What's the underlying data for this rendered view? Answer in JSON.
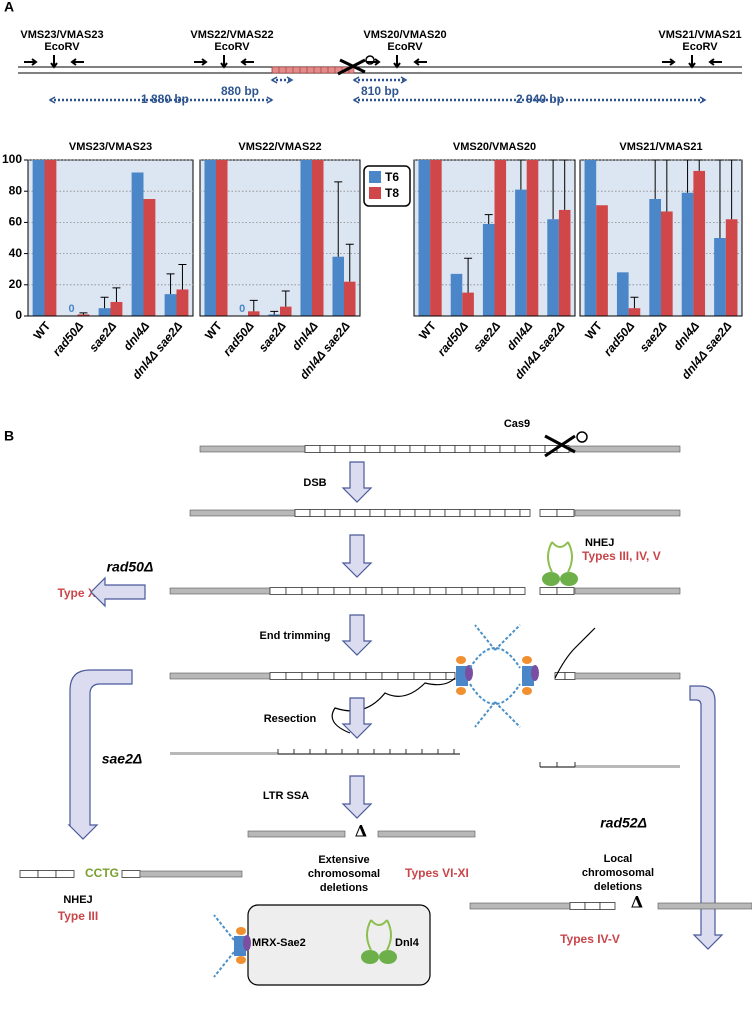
{
  "panel_a": {
    "label": "A",
    "sites": [
      {
        "name": "VMS23/VMAS23",
        "enzyme": "EcoRV"
      },
      {
        "name": "VMS22/VMAS22",
        "enzyme": "EcoRV"
      },
      {
        "name": "VMS20/VMAS20",
        "enzyme": "EcoRV"
      },
      {
        "name": "VMS21/VMAS21",
        "enzyme": "EcoRV"
      }
    ],
    "distances": [
      "1 880 bp",
      "880 bp",
      "810 bp",
      "2 940 bp"
    ]
  },
  "chart_data": [
    {
      "type": "bar",
      "title": "VMS23/VMAS23",
      "categories": [
        "WT",
        "rad50Δ",
        "sae2Δ",
        "dnl4Δ",
        "dnl4Δ sae2Δ"
      ],
      "series": [
        {
          "name": "T6",
          "color": "#4a86c8",
          "values": [
            100,
            0,
            5,
            92,
            14
          ],
          "errors": [
            null,
            null,
            7,
            null,
            13
          ],
          "value_labels": [
            null,
            "0",
            null,
            null,
            null
          ]
        },
        {
          "name": "T8",
          "color": "#d0474a",
          "values": [
            100,
            1,
            9,
            75,
            17
          ],
          "errors": [
            null,
            1,
            9,
            null,
            16
          ]
        }
      ],
      "ylim": [
        0,
        100
      ],
      "yticks": [
        0,
        20,
        40,
        60,
        80,
        100
      ],
      "grid": true
    },
    {
      "type": "bar",
      "title": "VMS22/VMAS22",
      "categories": [
        "WT",
        "rad50Δ",
        "sae2Δ",
        "dnl4Δ",
        "dnl4Δ sae2Δ"
      ],
      "series": [
        {
          "name": "T6",
          "color": "#4a86c8",
          "values": [
            100,
            0,
            1,
            100,
            38
          ],
          "errors": [
            null,
            null,
            2,
            null,
            48
          ],
          "value_labels": [
            null,
            "0",
            null,
            null,
            null
          ]
        },
        {
          "name": "T8",
          "color": "#d0474a",
          "values": [
            100,
            3,
            6,
            100,
            22
          ],
          "errors": [
            null,
            7,
            10,
            null,
            24
          ]
        }
      ],
      "ylim": [
        0,
        100
      ],
      "yticks": [
        0,
        20,
        40,
        60,
        80,
        100
      ],
      "grid": true,
      "legend": "right"
    },
    {
      "type": "bar",
      "title": "VMS20/VMAS20",
      "categories": [
        "WT",
        "rad50Δ",
        "sae2Δ",
        "dnl4Δ",
        "dnl4Δ sae2Δ"
      ],
      "series": [
        {
          "name": "T6",
          "color": "#4a86c8",
          "values": [
            100,
            27,
            59,
            81,
            62
          ],
          "errors": [
            null,
            null,
            6,
            19,
            38
          ]
        },
        {
          "name": "T8",
          "color": "#d0474a",
          "values": [
            100,
            15,
            100,
            100,
            68
          ],
          "errors": [
            null,
            22,
            null,
            null,
            32
          ]
        }
      ],
      "ylim": [
        0,
        100
      ],
      "yticks": [
        0,
        20,
        40,
        60,
        80,
        100
      ],
      "grid": true
    },
    {
      "type": "bar",
      "title": "VMS21/VMAS21",
      "categories": [
        "WT",
        "rad50Δ",
        "sae2Δ",
        "dnl4Δ",
        "dnl4Δ sae2Δ"
      ],
      "series": [
        {
          "name": "T6",
          "color": "#4a86c8",
          "values": [
            100,
            28,
            75,
            79,
            50
          ],
          "errors": [
            null,
            null,
            25,
            21,
            50
          ]
        },
        {
          "name": "T8",
          "color": "#d0474a",
          "values": [
            71,
            5,
            67,
            93,
            62
          ],
          "errors": [
            null,
            7,
            33,
            7,
            38
          ]
        }
      ],
      "ylim": [
        0,
        100
      ],
      "yticks": [
        0,
        20,
        40,
        60,
        80,
        100
      ],
      "grid": true
    }
  ],
  "panel_b": {
    "label": "B",
    "cas9": "Cas9",
    "dsb": "DSB",
    "nhej": "NHEJ",
    "nhej_types": "Types III, IV, V",
    "rad50": "rad50Δ",
    "rad50_type": "Type XII",
    "end_trimming": "End trimming",
    "resection": "Resection",
    "sae2": "sae2Δ",
    "ltr_ssa": "LTR SSA",
    "rad52": "rad52Δ",
    "cctg": "CCTG",
    "nhej2": "NHEJ",
    "nhej2_type": "Type III",
    "delta": "Δ",
    "extensive": [
      "Extensive",
      "chromosomal",
      "deletions"
    ],
    "extensive_types": "Types VI-XI",
    "local": [
      "Local",
      "chromosomal",
      "deletions"
    ],
    "local_types": "Types IV-V",
    "legend": [
      "MRX-Sae2",
      "Dnl4"
    ]
  }
}
